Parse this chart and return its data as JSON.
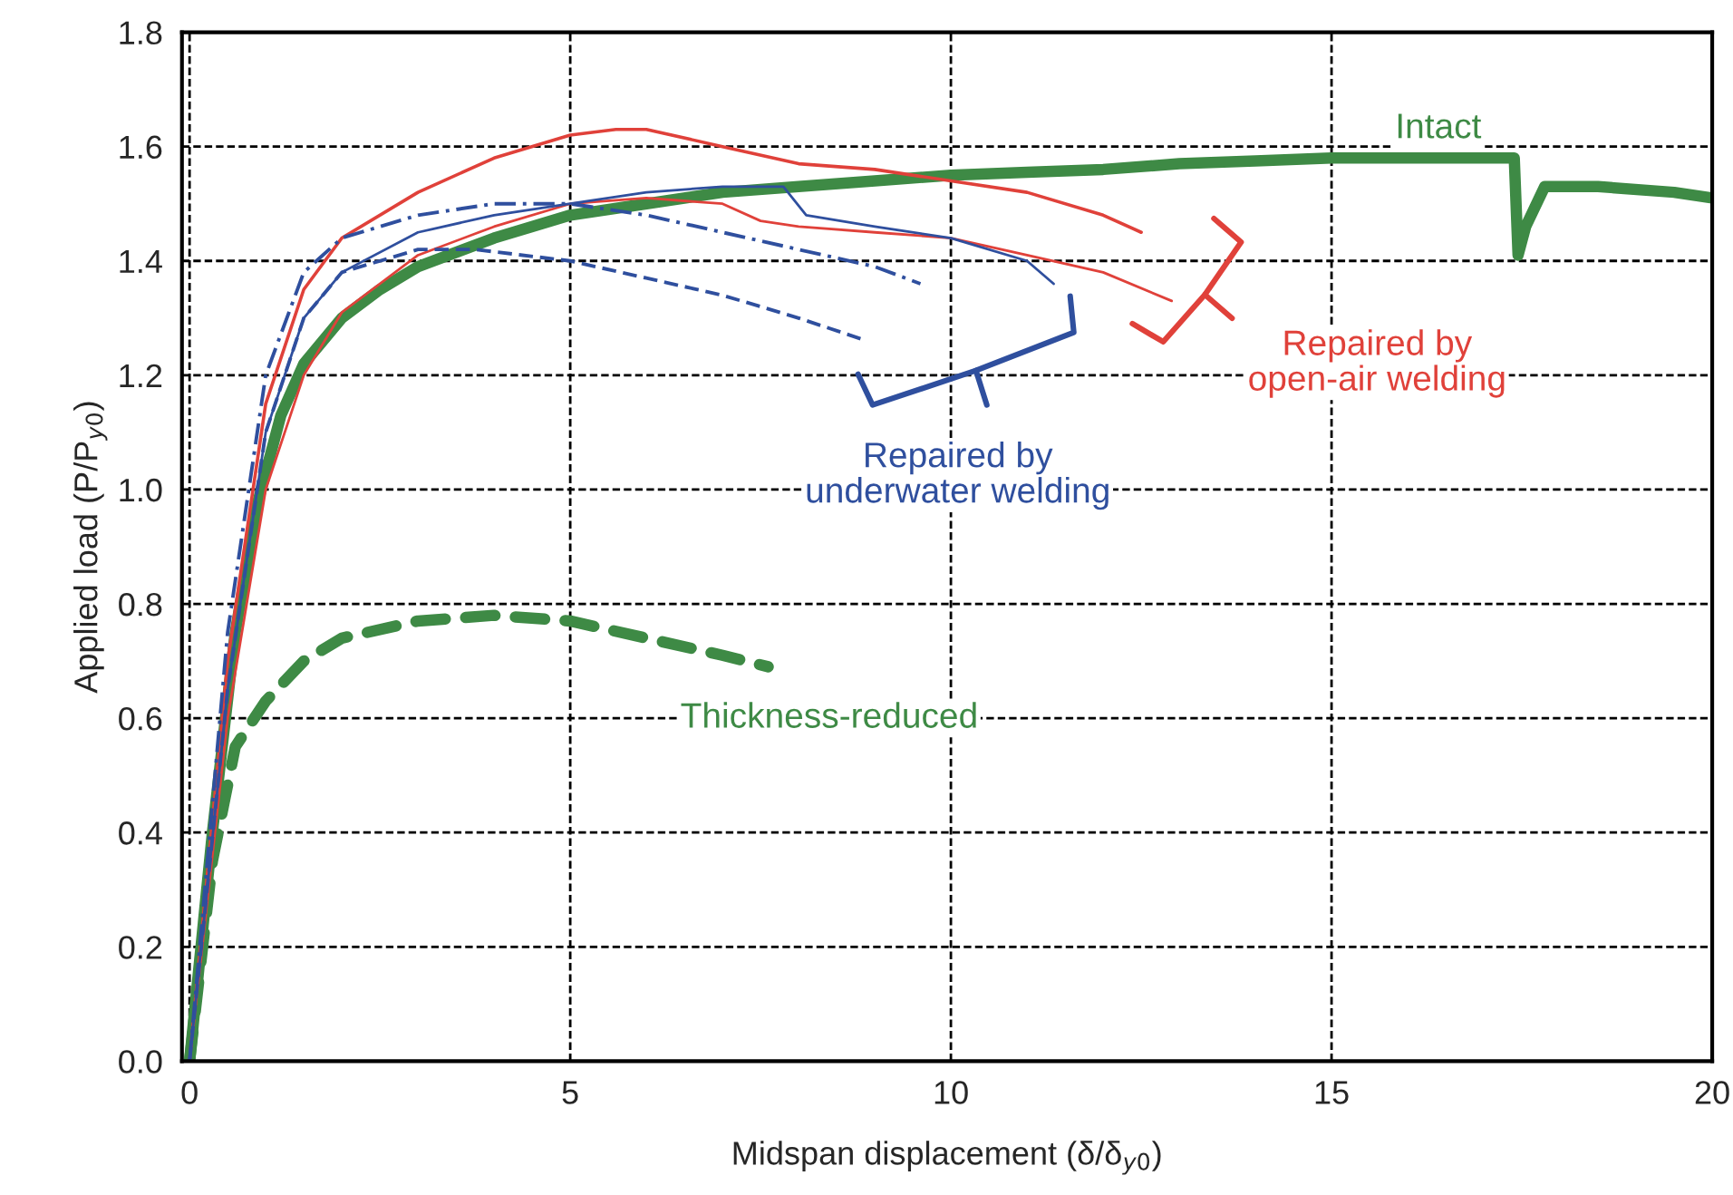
{
  "chart_data": {
    "type": "line",
    "xlabel": "Midspan displacement (δ/δ$_{y0}$)",
    "ylabel": "Applied load (P/P$_{y0}$)",
    "xlim": [
      -0.1,
      20
    ],
    "ylim": [
      0,
      1.8
    ],
    "xticks": [
      0,
      5,
      10,
      15,
      20
    ],
    "yticks": [
      {
        "value": 0,
        "label": "0.0"
      },
      {
        "value": 0.2,
        "label": "0.2"
      },
      {
        "value": 0.4,
        "label": "0.4"
      },
      {
        "value": 0.6,
        "label": "0.6"
      },
      {
        "value": 0.8,
        "label": "0.8"
      },
      {
        "value": 1.0,
        "label": "1.0"
      },
      {
        "value": 1.2,
        "label": "1.2"
      },
      {
        "value": 1.4,
        "label": "1.4"
      },
      {
        "value": 1.6,
        "label": "1.6"
      },
      {
        "value": 1.8,
        "label": "1.8"
      }
    ],
    "grid": true,
    "legend": "right",
    "marker": "none",
    "series": [
      {
        "name": "Intact",
        "color": "#3e8a45",
        "line_style": "solid",
        "x": [
          0,
          0.3,
          0.6,
          0.9,
          1.2,
          1.5,
          2,
          2.5,
          3,
          4,
          5,
          6,
          7,
          8,
          9,
          10,
          11,
          12,
          13,
          14,
          15,
          16,
          17,
          17.4,
          17.45,
          17.55,
          17.8,
          18.5,
          19.5,
          20
        ],
        "values": [
          0,
          0.4,
          0.75,
          0.98,
          1.13,
          1.22,
          1.3,
          1.35,
          1.39,
          1.44,
          1.48,
          1.5,
          1.52,
          1.53,
          1.54,
          1.55,
          1.555,
          1.56,
          1.57,
          1.575,
          1.58,
          1.58,
          1.58,
          1.58,
          1.41,
          1.46,
          1.53,
          1.53,
          1.52,
          1.51
        ]
      },
      {
        "name": "Thickness-reduced",
        "color": "#3e8a45",
        "line_style": "dashed",
        "x": [
          0,
          0.3,
          0.6,
          1,
          1.5,
          2,
          3,
          4,
          5,
          6,
          7,
          7.6
        ],
        "values": [
          0,
          0.35,
          0.55,
          0.63,
          0.7,
          0.74,
          0.77,
          0.78,
          0.77,
          0.74,
          0.71,
          0.69
        ]
      },
      {
        "name": "Repaired by\nopen-air welding",
        "color": "#e0413a",
        "line_style": "solid",
        "x": [
          0,
          0.5,
          1,
          1.5,
          2,
          3,
          4,
          5,
          5.6,
          6,
          7,
          8,
          9,
          10,
          11,
          12,
          12.5
        ],
        "values": [
          0,
          0.7,
          1.15,
          1.35,
          1.44,
          1.52,
          1.58,
          1.62,
          1.63,
          1.63,
          1.6,
          1.57,
          1.56,
          1.54,
          1.52,
          1.48,
          1.45
        ]
      },
      {
        "color": "#e0413a",
        "line_style": "solid",
        "x": [
          0,
          0.5,
          1,
          1.5,
          2,
          3,
          4,
          5,
          6,
          7,
          7.5,
          8,
          9,
          10,
          11,
          12,
          12.9
        ],
        "values": [
          0,
          0.6,
          1.0,
          1.2,
          1.31,
          1.41,
          1.46,
          1.5,
          1.51,
          1.5,
          1.47,
          1.46,
          1.45,
          1.44,
          1.41,
          1.38,
          1.33
        ]
      },
      {
        "name": "Repaired by\nunderwater welding",
        "color": "#2f4f9e",
        "line_style": "dashed",
        "x": [
          0,
          0.5,
          1,
          1.5,
          2,
          3,
          3.75,
          5,
          6,
          7,
          8,
          8.9
        ],
        "values": [
          0,
          0.65,
          1.1,
          1.3,
          1.38,
          1.42,
          1.42,
          1.4,
          1.37,
          1.34,
          1.3,
          1.26
        ]
      },
      {
        "color": "#2f4f9e",
        "line_style": "dashdot",
        "x": [
          0,
          0.5,
          1,
          1.5,
          2,
          3,
          4,
          5,
          6,
          7,
          8,
          9,
          9.6
        ],
        "values": [
          0,
          0.75,
          1.2,
          1.38,
          1.44,
          1.48,
          1.5,
          1.5,
          1.48,
          1.45,
          1.42,
          1.39,
          1.36
        ]
      },
      {
        "color": "#2f4f9e",
        "line_style": "solid",
        "x": [
          0,
          0.5,
          1,
          1.5,
          2,
          3,
          4,
          5,
          6,
          7,
          7.8,
          8.1,
          9,
          10,
          11,
          11.35
        ],
        "values": [
          0,
          0.65,
          1.1,
          1.3,
          1.38,
          1.45,
          1.48,
          1.5,
          1.52,
          1.53,
          1.53,
          1.48,
          1.46,
          1.44,
          1.4,
          1.36
        ]
      }
    ]
  }
}
